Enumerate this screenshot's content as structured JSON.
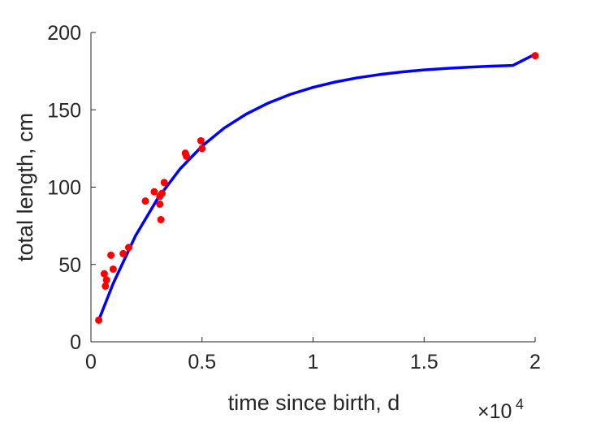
{
  "chart_data": {
    "type": "scatter",
    "title": "",
    "xlabel": "time since birth, d",
    "ylabel": "total length, cm",
    "x_exponent_label": {
      "times": "×10",
      "power": "4"
    },
    "xlim": [
      0,
      20000
    ],
    "ylim": [
      0,
      200
    ],
    "grid": false,
    "legend": "none",
    "xticks": [
      0,
      5000,
      10000,
      15000,
      20000
    ],
    "xtick_labels": [
      "0",
      "0.5",
      "1",
      "1.5",
      "2"
    ],
    "yticks": [
      0,
      50,
      100,
      150,
      200
    ],
    "ytick_labels": [
      "0",
      "50",
      "100",
      "150",
      "200"
    ],
    "series": [
      {
        "kind": "points",
        "color": "#ff0000",
        "points": [
          [
            350,
            14
          ],
          [
            600,
            44
          ],
          [
            650,
            36
          ],
          [
            700,
            40
          ],
          [
            900,
            56
          ],
          [
            1000,
            47
          ],
          [
            1450,
            57
          ],
          [
            1700,
            61
          ],
          [
            2450,
            91
          ],
          [
            2850,
            97
          ],
          [
            3100,
            94
          ],
          [
            3100,
            89
          ],
          [
            3150,
            79
          ],
          [
            3200,
            96
          ],
          [
            3300,
            103
          ],
          [
            4250,
            122
          ],
          [
            4300,
            120
          ],
          [
            4950,
            130
          ],
          [
            5000,
            125
          ],
          [
            20000,
            185
          ]
        ]
      },
      {
        "kind": "line",
        "color": "#0000ff",
        "points": [
          [
            350,
            14
          ],
          [
            1000,
            37.6
          ],
          [
            2000,
            68.4
          ],
          [
            3000,
            92.6
          ],
          [
            4000,
            111.6
          ],
          [
            5000,
            126.5
          ],
          [
            6000,
            138.2
          ],
          [
            7000,
            147.3
          ],
          [
            8000,
            154.5
          ],
          [
            9000,
            160.1
          ],
          [
            10000,
            164.5
          ],
          [
            11000,
            168.0
          ],
          [
            12000,
            170.7
          ],
          [
            13000,
            172.8
          ],
          [
            14000,
            174.5
          ],
          [
            15000,
            175.8
          ],
          [
            16000,
            176.8
          ],
          [
            17000,
            177.6
          ],
          [
            18000,
            178.2
          ],
          [
            19000,
            178.7
          ],
          [
            20000,
            186
          ]
        ]
      }
    ]
  }
}
